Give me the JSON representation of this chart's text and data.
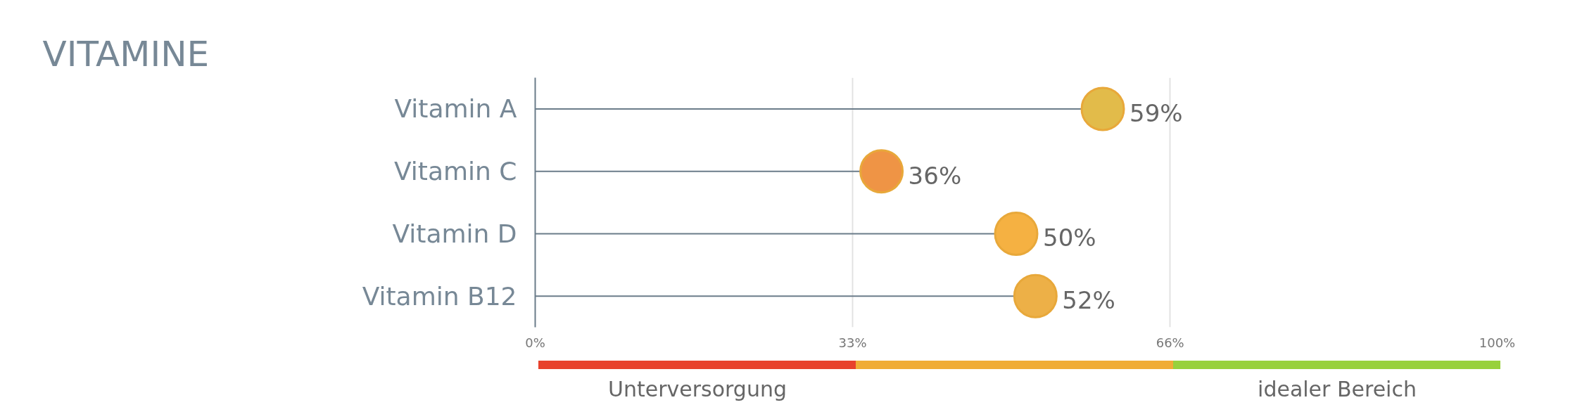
{
  "chart_data": {
    "type": "lollipop",
    "title": "VITAMINE",
    "orientation": "horizontal",
    "categories": [
      "Vitamin A",
      "Vitamin C",
      "Vitamin D",
      "Vitamin B12"
    ],
    "values": [
      59,
      36,
      50,
      52
    ],
    "colors": [
      "#e2bb4a",
      "#ef9445",
      "#f5b142",
      "#edb047"
    ],
    "value_labels": [
      "59%",
      "36%",
      "50%",
      "52%"
    ],
    "xlim": [
      0,
      100
    ],
    "xticks": [
      {
        "value": 0,
        "label": "0%"
      },
      {
        "value": 33,
        "label": "33%"
      },
      {
        "value": 66,
        "label": "66%"
      },
      {
        "value": 100,
        "label": "100%"
      }
    ],
    "grid": "x",
    "marker": "circle",
    "annotations": [
      "Unterversorgung",
      "idealer Bereich"
    ]
  }
}
